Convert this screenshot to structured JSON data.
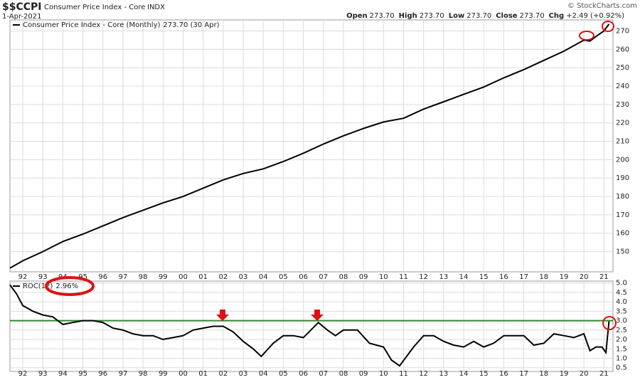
{
  "header": {
    "symbol": "$$CCPI",
    "name": "Consumer Price Index - Core",
    "exchange": "INDX",
    "date": "1-Apr-2021",
    "watermark": "© StockCharts.com",
    "quote": [
      {
        "label": "Open",
        "value": "273.70"
      },
      {
        "label": "High",
        "value": "273.70"
      },
      {
        "label": "Low",
        "value": "273.70"
      },
      {
        "label": "Close",
        "value": "273.70"
      },
      {
        "label": "Chg",
        "value": "+2.49 (+0.92%)"
      }
    ]
  },
  "chart_data": [
    {
      "type": "line",
      "xlim": [
        1991.36,
        2021.45
      ],
      "ylim": [
        139,
        276
      ],
      "grid": true,
      "xticks": [
        {
          "value": 1992,
          "label": "92"
        },
        {
          "value": 1993,
          "label": "93"
        },
        {
          "value": 1994,
          "label": "94"
        },
        {
          "value": 1995,
          "label": "95"
        },
        {
          "value": 1996,
          "label": "96"
        },
        {
          "value": 1997,
          "label": "97"
        },
        {
          "value": 1998,
          "label": "98"
        },
        {
          "value": 1999,
          "label": "99"
        },
        {
          "value": 2000,
          "label": "00"
        },
        {
          "value": 2001,
          "label": "01"
        },
        {
          "value": 2002,
          "label": "02"
        },
        {
          "value": 2003,
          "label": "03"
        },
        {
          "value": 2004,
          "label": "04"
        },
        {
          "value": 2005,
          "label": "05"
        },
        {
          "value": 2006,
          "label": "06"
        },
        {
          "value": 2007,
          "label": "07"
        },
        {
          "value": 2008,
          "label": "08"
        },
        {
          "value": 2009,
          "label": "09"
        },
        {
          "value": 2010,
          "label": "10"
        },
        {
          "value": 2011,
          "label": "11"
        },
        {
          "value": 2012,
          "label": "12"
        },
        {
          "value": 2013,
          "label": "13"
        },
        {
          "value": 2014,
          "label": "14"
        },
        {
          "value": 2015,
          "label": "15"
        },
        {
          "value": 2016,
          "label": "16"
        },
        {
          "value": 2017,
          "label": "17"
        },
        {
          "value": 2018,
          "label": "18"
        },
        {
          "value": 2019,
          "label": "19"
        },
        {
          "value": 2020,
          "label": "20"
        },
        {
          "value": 2021,
          "label": "21"
        }
      ],
      "yticks": [
        150,
        160,
        170,
        180,
        190,
        200,
        210,
        220,
        230,
        240,
        250,
        260,
        270
      ],
      "x": [
        1991.36,
        1992,
        1993,
        1994,
        1995,
        1996,
        1997,
        1998,
        1999,
        2000,
        2001,
        2002,
        2003,
        2004,
        2005,
        2006,
        2007,
        2008,
        2009,
        2010,
        2011,
        2012,
        2013,
        2014,
        2015,
        2016,
        2017,
        2018,
        2019,
        2020,
        2020.3,
        2020.6,
        2021,
        2021.25
      ],
      "series": [
        {
          "name": "Consumer Price Index - Core (Monthly)",
          "last_label": "273.70 (30 Apr)",
          "color": "#000000",
          "values": [
            141,
            145,
            150,
            155.5,
            159.5,
            164,
            168.5,
            172.5,
            176.5,
            180,
            184.5,
            189,
            192.5,
            195,
            199,
            203.5,
            208.5,
            213,
            217,
            220.5,
            222.5,
            227.5,
            231.5,
            235.5,
            239.5,
            244.5,
            249,
            254,
            259,
            265,
            264.5,
            267,
            270,
            273.7
          ]
        }
      ]
    },
    {
      "type": "line",
      "xlim": [
        1991.36,
        2021.45
      ],
      "ylim": [
        0.3,
        5.1
      ],
      "grid": true,
      "xticks": [
        {
          "value": 1992,
          "label": "92"
        },
        {
          "value": 1993,
          "label": "93"
        },
        {
          "value": 1994,
          "label": "94"
        },
        {
          "value": 1995,
          "label": "95"
        },
        {
          "value": 1996,
          "label": "96"
        },
        {
          "value": 1997,
          "label": "97"
        },
        {
          "value": 1998,
          "label": "98"
        },
        {
          "value": 1999,
          "label": "99"
        },
        {
          "value": 2000,
          "label": "00"
        },
        {
          "value": 2001,
          "label": "01"
        },
        {
          "value": 2002,
          "label": "02"
        },
        {
          "value": 2003,
          "label": "03"
        },
        {
          "value": 2004,
          "label": "04"
        },
        {
          "value": 2005,
          "label": "05"
        },
        {
          "value": 2006,
          "label": "06"
        },
        {
          "value": 2007,
          "label": "07"
        },
        {
          "value": 2008,
          "label": "08"
        },
        {
          "value": 2009,
          "label": "09"
        },
        {
          "value": 2010,
          "label": "10"
        },
        {
          "value": 2011,
          "label": "11"
        },
        {
          "value": 2012,
          "label": "12"
        },
        {
          "value": 2013,
          "label": "13"
        },
        {
          "value": 2014,
          "label": "14"
        },
        {
          "value": 2015,
          "label": "15"
        },
        {
          "value": 2016,
          "label": "16"
        },
        {
          "value": 2017,
          "label": "17"
        },
        {
          "value": 2018,
          "label": "18"
        },
        {
          "value": 2019,
          "label": "19"
        },
        {
          "value": 2020,
          "label": "20"
        },
        {
          "value": 2021,
          "label": "21"
        }
      ],
      "yticks": [
        {
          "value": 0.5,
          "label": "0.5"
        },
        {
          "value": 1.0,
          "label": "1.0"
        },
        {
          "value": 1.5,
          "label": "1.5"
        },
        {
          "value": 2.0,
          "label": "2.0"
        },
        {
          "value": 2.5,
          "label": "2.5"
        },
        {
          "value": 3.0,
          "label": "3.0"
        },
        {
          "value": 3.5,
          "label": "3.5"
        },
        {
          "value": 4.0,
          "label": "4.0"
        },
        {
          "value": 4.5,
          "label": "4.5"
        },
        {
          "value": 5.0,
          "label": "5.0"
        }
      ],
      "hline": {
        "value": 3.0,
        "color": "#2e8b2e"
      },
      "x": [
        1991.36,
        1991.7,
        1992,
        1992.5,
        1993,
        1993.5,
        1994,
        1994.5,
        1995,
        1995.5,
        1996,
        1996.5,
        1997,
        1997.5,
        1998,
        1998.5,
        1999,
        1999.5,
        2000,
        2000.5,
        2001,
        2001.5,
        2002,
        2002.5,
        2003,
        2003.5,
        2003.9,
        2004.5,
        2005,
        2005.5,
        2006,
        2006.75,
        2007.2,
        2007.6,
        2008,
        2008.7,
        2009.3,
        2010,
        2010.4,
        2010.8,
        2011.5,
        2012,
        2012.5,
        2013,
        2013.5,
        2014,
        2014.5,
        2015,
        2015.5,
        2016,
        2016.5,
        2017,
        2017.5,
        2018,
        2018.5,
        2019,
        2019.5,
        2020,
        2020.3,
        2020.6,
        2020.9,
        2021.1,
        2021.25
      ],
      "series": [
        {
          "name": "ROC(12)",
          "last_label": "2.96%",
          "color": "#000000",
          "values": [
            4.9,
            4.4,
            3.8,
            3.5,
            3.3,
            3.2,
            2.8,
            2.9,
            3.0,
            3.0,
            2.9,
            2.6,
            2.5,
            2.3,
            2.2,
            2.2,
            2.0,
            2.1,
            2.2,
            2.5,
            2.6,
            2.7,
            2.7,
            2.4,
            1.9,
            1.5,
            1.1,
            1.8,
            2.2,
            2.2,
            2.1,
            2.9,
            2.5,
            2.2,
            2.5,
            2.5,
            1.8,
            1.6,
            0.9,
            0.6,
            1.6,
            2.2,
            2.2,
            1.9,
            1.7,
            1.6,
            1.9,
            1.6,
            1.8,
            2.2,
            2.2,
            2.2,
            1.7,
            1.8,
            2.3,
            2.2,
            2.1,
            2.3,
            1.4,
            1.6,
            1.6,
            1.3,
            2.96
          ]
        }
      ]
    }
  ]
}
